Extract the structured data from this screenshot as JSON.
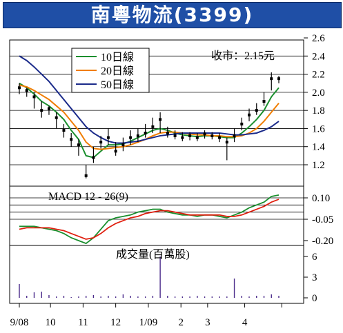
{
  "header": {
    "title": "南粵物流(3399)"
  },
  "close_note": "收市：2.15元",
  "colors": {
    "title_bg": "#1f4fa6",
    "ma10": "#1a8f2e",
    "ma20": "#f07d00",
    "ma50": "#1a2a8a",
    "macd_line": "#1a8f2e",
    "macd_signal": "#e02010",
    "volume": "#4a2a8a",
    "candle": "#000000"
  },
  "chart_data": [
    {
      "type": "candlestick",
      "title": "南粵物流(3399)",
      "annotation": "收市：2.15元",
      "ylim": [
        1.0,
        2.6
      ],
      "yticks": [
        1.2,
        1.4,
        1.6,
        1.8,
        2.0,
        2.2,
        2.4,
        2.6
      ],
      "ytick_labels": [
        "1.2",
        "1.4",
        "1.6",
        "1.8",
        "2.0",
        "2.2",
        "2.4",
        "2.6"
      ],
      "grid": true,
      "legend": {
        "placement": "top-left",
        "entries": [
          "10日線",
          "20日線",
          "50日線"
        ]
      },
      "x": [
        0,
        5,
        10,
        15,
        20,
        25,
        30,
        35,
        40,
        45,
        50,
        55,
        60,
        65,
        70,
        75,
        80,
        85,
        90,
        95,
        100,
        105,
        110,
        115,
        120,
        125,
        130,
        135,
        140,
        145,
        150,
        155,
        160,
        165,
        170,
        175
      ],
      "close": [
        2.05,
        2.02,
        1.95,
        1.8,
        1.82,
        1.72,
        1.58,
        1.48,
        1.42,
        1.08,
        1.28,
        1.45,
        1.5,
        1.35,
        1.42,
        1.5,
        1.52,
        1.55,
        1.62,
        1.7,
        1.55,
        1.52,
        1.5,
        1.52,
        1.5,
        1.54,
        1.52,
        1.5,
        1.45,
        1.52,
        1.65,
        1.75,
        1.8,
        1.9,
        2.15,
        2.15
      ],
      "high": [
        2.1,
        2.05,
        2.0,
        1.9,
        1.85,
        1.78,
        1.65,
        1.55,
        1.48,
        1.2,
        1.4,
        1.52,
        1.6,
        1.45,
        1.5,
        1.58,
        1.6,
        1.65,
        1.72,
        1.78,
        1.62,
        1.58,
        1.56,
        1.56,
        1.55,
        1.58,
        1.56,
        1.55,
        1.5,
        1.6,
        1.72,
        1.82,
        1.88,
        2.0,
        2.22,
        2.18
      ],
      "low": [
        1.98,
        1.95,
        1.82,
        1.72,
        1.75,
        1.6,
        1.5,
        1.4,
        1.3,
        1.05,
        1.22,
        1.38,
        1.42,
        1.3,
        1.35,
        1.42,
        1.45,
        1.5,
        1.55,
        1.55,
        1.5,
        1.48,
        1.46,
        1.47,
        1.46,
        1.49,
        1.48,
        1.45,
        1.25,
        1.45,
        1.58,
        1.68,
        1.75,
        1.85,
        2.02,
        2.1
      ],
      "series": [
        {
          "name": "10日線",
          "values": [
            2.1,
            2.05,
            1.98,
            1.9,
            1.85,
            1.78,
            1.7,
            1.58,
            1.48,
            1.3,
            1.28,
            1.35,
            1.42,
            1.42,
            1.43,
            1.46,
            1.5,
            1.54,
            1.58,
            1.6,
            1.58,
            1.55,
            1.53,
            1.52,
            1.51,
            1.52,
            1.52,
            1.51,
            1.5,
            1.5,
            1.55,
            1.62,
            1.7,
            1.8,
            1.95,
            2.05
          ]
        },
        {
          "name": "20日線",
          "values": [
            2.08,
            2.06,
            2.02,
            1.97,
            1.92,
            1.85,
            1.78,
            1.68,
            1.58,
            1.45,
            1.38,
            1.37,
            1.38,
            1.39,
            1.4,
            1.42,
            1.45,
            1.48,
            1.52,
            1.55,
            1.56,
            1.56,
            1.55,
            1.54,
            1.53,
            1.53,
            1.52,
            1.52,
            1.51,
            1.51,
            1.52,
            1.55,
            1.6,
            1.68,
            1.78,
            1.88
          ]
        },
        {
          "name": "50日線",
          "values": [
            2.4,
            2.35,
            2.28,
            2.2,
            2.12,
            2.02,
            1.92,
            1.82,
            1.72,
            1.62,
            1.55,
            1.5,
            1.46,
            1.44,
            1.44,
            1.45,
            1.46,
            1.48,
            1.5,
            1.52,
            1.53,
            1.54,
            1.55,
            1.55,
            1.55,
            1.55,
            1.55,
            1.55,
            1.54,
            1.53,
            1.53,
            1.54,
            1.55,
            1.58,
            1.62,
            1.68
          ]
        }
      ]
    },
    {
      "type": "line",
      "title": "MACD 12 - 26(9)",
      "ylim": [
        -0.25,
        0.15
      ],
      "yticks": [
        0.1,
        -0.05,
        -0.2
      ],
      "ytick_labels": [
        "0.10",
        "-0.05",
        "-0.20"
      ],
      "gridlines_at": [
        0.1,
        0.05,
        0.0,
        -0.05
      ],
      "x": [
        0,
        5,
        10,
        15,
        20,
        25,
        30,
        35,
        40,
        45,
        50,
        55,
        60,
        65,
        70,
        75,
        80,
        85,
        90,
        95,
        100,
        105,
        110,
        115,
        120,
        125,
        130,
        135,
        140,
        145,
        150,
        155,
        160,
        165,
        170,
        175
      ],
      "series": [
        {
          "name": "",
          "values": [
            -0.1,
            -0.1,
            -0.1,
            -0.11,
            -0.12,
            -0.13,
            -0.15,
            -0.18,
            -0.2,
            -0.22,
            -0.18,
            -0.12,
            -0.06,
            -0.04,
            -0.03,
            -0.02,
            0.0,
            0.01,
            0.02,
            0.02,
            0.0,
            -0.01,
            -0.02,
            -0.02,
            -0.03,
            -0.02,
            -0.02,
            -0.03,
            -0.04,
            -0.02,
            0.0,
            0.03,
            0.05,
            0.07,
            0.11,
            0.12
          ]
        },
        {
          "name": "",
          "values": [
            -0.12,
            -0.11,
            -0.11,
            -0.11,
            -0.11,
            -0.12,
            -0.13,
            -0.15,
            -0.17,
            -0.19,
            -0.18,
            -0.15,
            -0.11,
            -0.08,
            -0.06,
            -0.04,
            -0.03,
            -0.01,
            0.0,
            0.01,
            0.01,
            0.0,
            -0.01,
            -0.02,
            -0.02,
            -0.02,
            -0.02,
            -0.02,
            -0.03,
            -0.03,
            -0.02,
            0.0,
            0.02,
            0.04,
            0.07,
            0.09
          ]
        }
      ]
    },
    {
      "type": "bar",
      "title": "成交量(百萬股)",
      "ylim": [
        0,
        7
      ],
      "yticks": [
        0,
        3,
        6
      ],
      "ytick_labels": [
        "0",
        "3",
        "6"
      ],
      "x": [
        0,
        5,
        10,
        15,
        20,
        25,
        30,
        35,
        40,
        45,
        50,
        55,
        60,
        65,
        70,
        75,
        80,
        85,
        90,
        95,
        100,
        105,
        110,
        115,
        120,
        125,
        130,
        135,
        140,
        145,
        150,
        155,
        160,
        165,
        170,
        175
      ],
      "values": [
        2.0,
        0.3,
        0.8,
        0.9,
        0.4,
        0.2,
        0.3,
        0.1,
        0.2,
        0.3,
        0.4,
        0.2,
        0.3,
        0.2,
        0.5,
        0.3,
        0.2,
        0.2,
        0.3,
        6.0,
        0.3,
        0.2,
        0.2,
        0.2,
        0.3,
        0.2,
        0.2,
        0.2,
        0.2,
        2.8,
        0.3,
        0.2,
        0.3,
        0.3,
        0.5,
        0.3
      ]
    }
  ],
  "x_axis": {
    "ticks": [
      0,
      21,
      43,
      65,
      87,
      109,
      127,
      152,
      177
    ],
    "labels": [
      "9/08",
      "10",
      "11",
      "12",
      "1/09",
      "2",
      "3",
      "4",
      ""
    ]
  }
}
